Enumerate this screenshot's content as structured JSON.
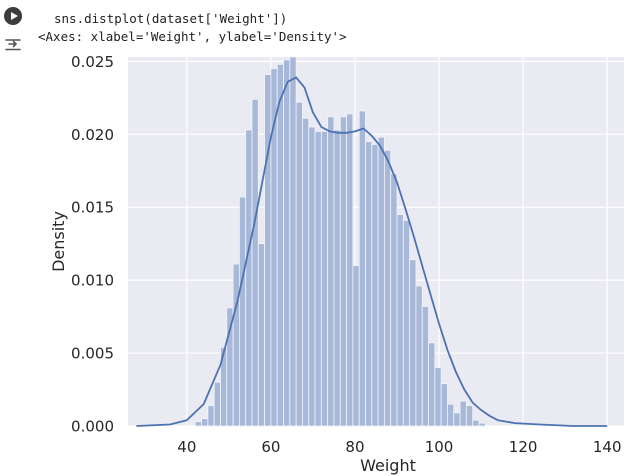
{
  "cell": {
    "code": "sns.distplot(dataset['Weight'])",
    "output_text": "<Axes: xlabel='Weight', ylabel='Density'>",
    "run_icon": "play-circle-icon",
    "output_icon": "output-toggle-icon"
  },
  "chart_data": {
    "type": "bar",
    "title": "",
    "xlabel": "Weight",
    "ylabel": "Density",
    "xlim": [
      26,
      144
    ],
    "ylim": [
      0,
      0.0253
    ],
    "xticks": [
      40,
      60,
      80,
      100,
      120,
      140
    ],
    "yticks": [
      0.0,
      0.005,
      0.01,
      0.015,
      0.02,
      0.025
    ],
    "ytick_labels": [
      "0.000",
      "0.005",
      "0.010",
      "0.015",
      "0.020",
      "0.025"
    ],
    "grid": true,
    "colors": {
      "background": "#eaeaf2",
      "grid": "#ffffff",
      "bar_fill": "#a7b8d8",
      "bar_edge": "#f2f4fa",
      "kde_line": "#4c72b0",
      "text": "#262626"
    },
    "histogram": {
      "bin_edges_start": 42,
      "bin_width": 1.5,
      "densities": [
        0.0003,
        0.0005,
        0.0014,
        0.003,
        0.0054,
        0.0081,
        0.0111,
        0.0157,
        0.0203,
        0.0224,
        0.0125,
        0.0241,
        0.0245,
        0.0248,
        0.0251,
        0.0253,
        0.0222,
        0.0211,
        0.0205,
        0.0202,
        0.0202,
        0.0212,
        0.0203,
        0.0212,
        0.0214,
        0.011,
        0.0216,
        0.0195,
        0.0193,
        0.0198,
        0.0189,
        0.0173,
        0.0145,
        0.0141,
        0.0114,
        0.0096,
        0.0082,
        0.0057,
        0.004,
        0.0029,
        0.0015,
        0.0009,
        0.0017,
        0.0014,
        0.0004,
        0.0002
      ]
    },
    "kde": {
      "x": [
        28,
        36,
        40,
        44,
        48,
        52,
        56,
        58,
        60,
        62,
        64,
        66,
        68,
        70,
        72,
        74,
        76,
        78,
        80,
        82,
        84,
        86,
        88,
        90,
        92,
        94,
        96,
        98,
        100,
        102,
        104,
        106,
        108,
        110,
        112,
        114,
        118,
        124,
        132,
        140
      ],
      "y": [
        0.0,
        0.0001,
        0.0004,
        0.0015,
        0.0042,
        0.0085,
        0.0138,
        0.0168,
        0.0198,
        0.0222,
        0.0236,
        0.0239,
        0.0232,
        0.0215,
        0.0205,
        0.0202,
        0.0201,
        0.0201,
        0.0202,
        0.0204,
        0.0199,
        0.0192,
        0.0181,
        0.0167,
        0.0149,
        0.013,
        0.011,
        0.009,
        0.007,
        0.0052,
        0.0037,
        0.0025,
        0.0016,
        0.0011,
        0.0007,
        0.0004,
        0.0002,
        0.0001,
        0.0,
        0.0
      ]
    }
  }
}
